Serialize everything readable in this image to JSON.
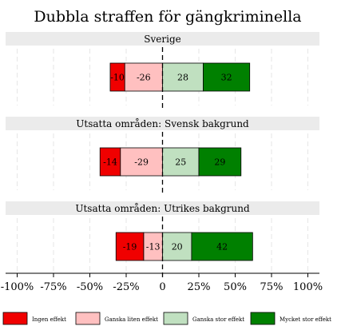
{
  "chart_data": {
    "type": "bar",
    "orientation": "horizontal",
    "stacked": "diverging",
    "title": "Dubbla straffen för gängkriminella",
    "xlim": [
      -100,
      100
    ],
    "x_ticks": [
      -100,
      -75,
      -50,
      -25,
      0,
      25,
      50,
      75,
      100
    ],
    "x_tick_labels": [
      "-100%",
      "-75%",
      "-50%",
      "-25%",
      "0",
      "25%",
      "50%",
      "75%",
      "100%"
    ],
    "grid": true,
    "legend_position": "bottom",
    "categories": [
      "Sverige",
      "Utsatta områden: Svensk bakgrund",
      "Utsatta områden: Utrikes bakgrund"
    ],
    "series": [
      {
        "name": "Ingen effekt",
        "color": "#f00000",
        "values": [
          -10,
          -14,
          -19
        ],
        "labels": [
          "-10",
          "-14",
          "-19"
        ]
      },
      {
        "name": "Ganska liten effekt",
        "color": "#ffc0c0",
        "values": [
          -26,
          -29,
          -13
        ],
        "labels": [
          "-26",
          "-29",
          "-13"
        ]
      },
      {
        "name": "Ganska stor effekt",
        "color": "#c0e0c0",
        "values": [
          28,
          25,
          20
        ],
        "labels": [
          "28",
          "25",
          "20"
        ]
      },
      {
        "name": "Mycket stor effekt",
        "color": "#008000",
        "values": [
          32,
          29,
          42
        ],
        "labels": [
          "32",
          "29",
          "42"
        ]
      }
    ]
  }
}
